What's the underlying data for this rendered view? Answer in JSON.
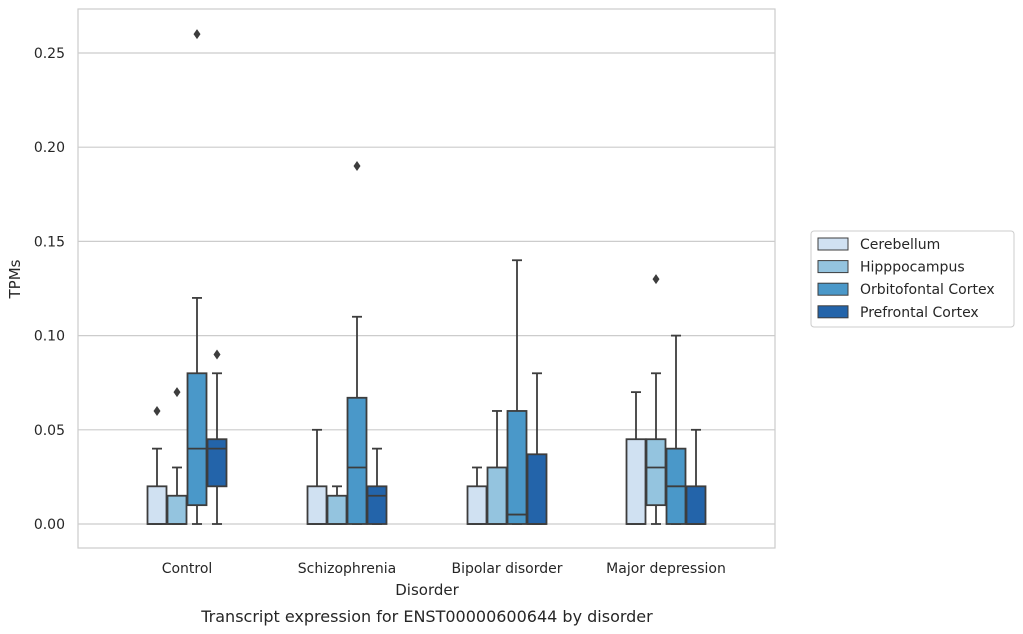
{
  "chart_data": {
    "type": "box",
    "caption": "Transcript expression for ENST00000600644 by disorder",
    "xlabel": "Disorder",
    "ylabel": "TPMs",
    "ylim": [
      -0.0125,
      0.275
    ],
    "yticks": [
      0.0,
      0.05,
      0.1,
      0.15,
      0.2,
      0.25
    ],
    "ytick_labels": [
      "0.00",
      "0.05",
      "0.10",
      "0.15",
      "0.20",
      "0.25"
    ],
    "grid": true,
    "legend_position": "right",
    "categories": [
      "Control",
      "Schizophrenia",
      "Bipolar disorder",
      "Major depression"
    ],
    "series": [
      {
        "name": "Cerebellum",
        "color": "#d0e1f2",
        "boxes": [
          {
            "whisker_low": 0.0,
            "q1": 0.0,
            "median": 0.0,
            "q3": 0.02,
            "whisker_high": 0.04,
            "outliers": [
              0.06
            ]
          },
          {
            "whisker_low": 0.0,
            "q1": 0.0,
            "median": 0.0,
            "q3": 0.02,
            "whisker_high": 0.05,
            "outliers": []
          },
          {
            "whisker_low": 0.0,
            "q1": 0.0,
            "median": 0.0,
            "q3": 0.02,
            "whisker_high": 0.03,
            "outliers": []
          },
          {
            "whisker_low": 0.0,
            "q1": 0.0,
            "median": 0.0,
            "q3": 0.045,
            "whisker_high": 0.07,
            "outliers": []
          }
        ]
      },
      {
        "name": "Hipppocampus",
        "color": "#94c4df",
        "boxes": [
          {
            "whisker_low": 0.0,
            "q1": 0.0,
            "median": 0.0,
            "q3": 0.015,
            "whisker_high": 0.03,
            "outliers": [
              0.07
            ]
          },
          {
            "whisker_low": 0.0,
            "q1": 0.0,
            "median": 0.0,
            "q3": 0.015,
            "whisker_high": 0.02,
            "outliers": []
          },
          {
            "whisker_low": 0.0,
            "q1": 0.0,
            "median": 0.0,
            "q3": 0.03,
            "whisker_high": 0.06,
            "outliers": []
          },
          {
            "whisker_low": 0.0,
            "q1": 0.01,
            "median": 0.03,
            "q3": 0.045,
            "whisker_high": 0.08,
            "outliers": [
              0.13
            ]
          }
        ]
      },
      {
        "name": "Orbitofontal Cortex",
        "color": "#4a98c9",
        "boxes": [
          {
            "whisker_low": 0.0,
            "q1": 0.01,
            "median": 0.04,
            "q3": 0.08,
            "whisker_high": 0.12,
            "outliers": [
              0.26
            ]
          },
          {
            "whisker_low": 0.0,
            "q1": 0.0,
            "median": 0.03,
            "q3": 0.067,
            "whisker_high": 0.11,
            "outliers": [
              0.19
            ]
          },
          {
            "whisker_low": 0.0,
            "q1": 0.0,
            "median": 0.005,
            "q3": 0.06,
            "whisker_high": 0.14,
            "outliers": []
          },
          {
            "whisker_low": 0.0,
            "q1": 0.0,
            "median": 0.02,
            "q3": 0.04,
            "whisker_high": 0.1,
            "outliers": []
          }
        ]
      },
      {
        "name": "Prefrontal Cortex",
        "color": "#2364aa",
        "boxes": [
          {
            "whisker_low": 0.0,
            "q1": 0.02,
            "median": 0.04,
            "q3": 0.045,
            "whisker_high": 0.08,
            "outliers": [
              0.09
            ]
          },
          {
            "whisker_low": 0.0,
            "q1": 0.0,
            "median": 0.015,
            "q3": 0.02,
            "whisker_high": 0.04,
            "outliers": []
          },
          {
            "whisker_low": 0.0,
            "q1": 0.0,
            "median": 0.0,
            "q3": 0.037,
            "whisker_high": 0.08,
            "outliers": []
          },
          {
            "whisker_low": 0.0,
            "q1": 0.0,
            "median": 0.0,
            "q3": 0.02,
            "whisker_high": 0.05,
            "outliers": []
          }
        ]
      }
    ]
  }
}
